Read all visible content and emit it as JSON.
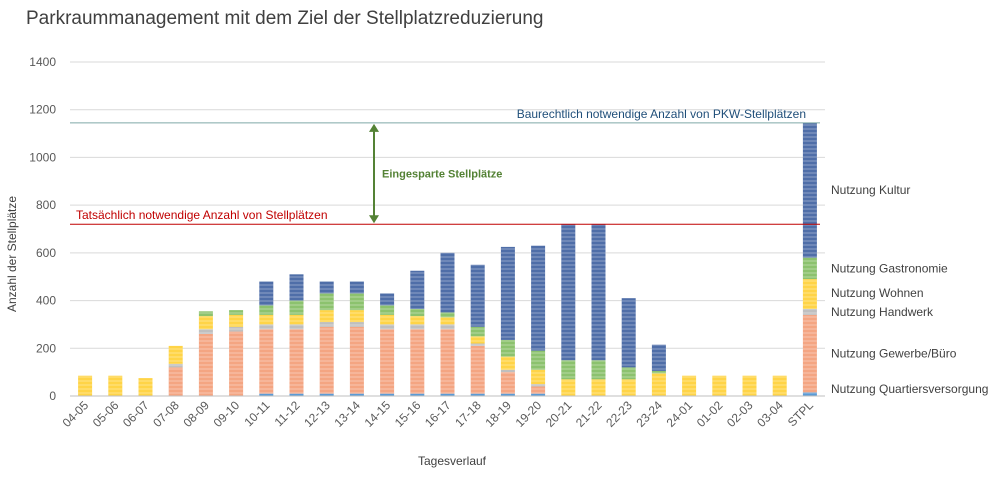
{
  "chart_data": {
    "type": "bar",
    "stacked": true,
    "title": "Parkraummanagement mit dem Ziel der Stellplatzreduzierung",
    "xlabel": "Tagesverlauf",
    "ylabel": "Anzahl der Stellplätze",
    "ylim": [
      0,
      1400
    ],
    "yticks": [
      0,
      200,
      400,
      600,
      800,
      1000,
      1200,
      1400
    ],
    "grid": true,
    "categories": [
      "04-05",
      "05-06",
      "06-07",
      "07-08",
      "08-09",
      "09-10",
      "10-11",
      "11-12",
      "12-13",
      "13-14",
      "14-15",
      "15-16",
      "16-17",
      "17-18",
      "18-19",
      "19-20",
      "20-21",
      "21-22",
      "22-23",
      "23-24",
      "24-01",
      "01-02",
      "02-03",
      "03-04",
      "STPL"
    ],
    "series": [
      {
        "name": "Nutzung Quartiersversorgung",
        "color": "#5B9BD5",
        "values": [
          0,
          0,
          0,
          0,
          0,
          0,
          10,
          10,
          10,
          10,
          10,
          10,
          10,
          10,
          10,
          10,
          0,
          0,
          0,
          0,
          0,
          0,
          0,
          0,
          15
        ]
      },
      {
        "name": "Nutzung Gewerbe/Büro",
        "color": "#F4A582",
        "values": [
          0,
          0,
          0,
          120,
          260,
          270,
          270,
          270,
          280,
          280,
          270,
          270,
          270,
          200,
          90,
          30,
          0,
          0,
          0,
          0,
          0,
          0,
          0,
          0,
          325
        ]
      },
      {
        "name": "Nutzung Handwerk",
        "color": "#BFBFBF",
        "values": [
          0,
          0,
          0,
          15,
          20,
          20,
          20,
          20,
          20,
          20,
          20,
          20,
          20,
          10,
          10,
          10,
          0,
          0,
          0,
          0,
          0,
          0,
          0,
          0,
          25
        ]
      },
      {
        "name": "Nutzung Wohnen",
        "color": "#FFD447",
        "values": [
          85,
          85,
          75,
          75,
          55,
          50,
          40,
          40,
          50,
          50,
          40,
          35,
          30,
          30,
          55,
          60,
          70,
          70,
          70,
          95,
          85,
          85,
          85,
          85,
          125
        ]
      },
      {
        "name": "Nutzung Gastronomie",
        "color": "#8CC26E",
        "values": [
          0,
          0,
          0,
          0,
          20,
          20,
          40,
          60,
          70,
          70,
          40,
          30,
          20,
          40,
          70,
          80,
          80,
          80,
          50,
          10,
          0,
          0,
          0,
          0,
          90
        ]
      },
      {
        "name": "Nutzung Kultur",
        "color": "#4F6EA8",
        "values": [
          0,
          0,
          0,
          0,
          0,
          0,
          100,
          110,
          50,
          50,
          50,
          160,
          250,
          260,
          390,
          440,
          570,
          570,
          290,
          110,
          0,
          0,
          0,
          0,
          565
        ]
      }
    ],
    "annotations": {
      "baurechtlich": {
        "label": "Baurechtlich notwendige Anzahl von PKW-Stellplätzen",
        "value": 1145,
        "color": "#1F4E79",
        "line_color": "#7FA9A8"
      },
      "tatsaechlich": {
        "label": "Tatsächlich notwendige Anzahl von Stellplätzen",
        "value": 720,
        "color": "#C00000"
      },
      "eingespart": {
        "label": "Eingesparte Stellplätze",
        "color": "#548235"
      }
    }
  }
}
